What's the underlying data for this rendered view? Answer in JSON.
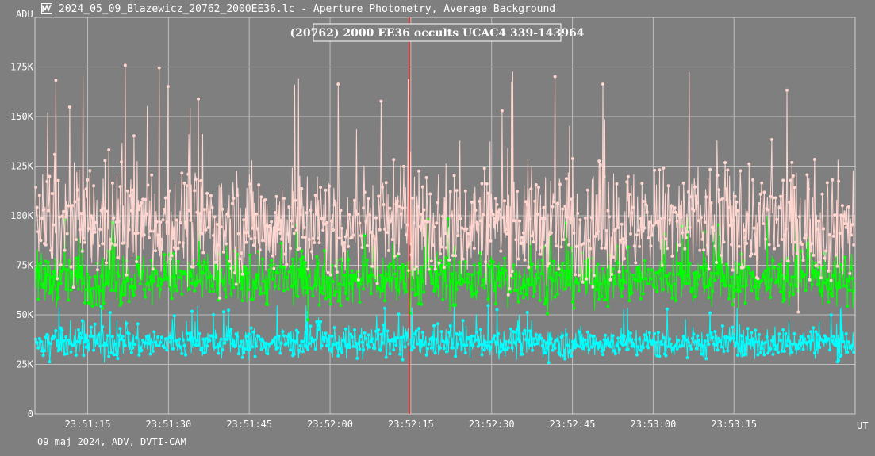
{
  "window": {
    "title": "2024_05_09_Blazewicz_20762_2000EE36.lc - Aperture Photometry, Average Background",
    "icon": "lightcurve-app-icon"
  },
  "footer": {
    "text": "09 maj 2024, ADV, DVTI-CAM"
  },
  "chart_data": {
    "type": "scatter",
    "title": "(20762) 2000 EE36 occults UCAC4 339-143964",
    "ylabel": "ADU",
    "xlabel": "UT",
    "ylim": [
      0,
      200000
    ],
    "xlim": [
      5465.2,
      5617.5
    ],
    "x_unit": "seconds since 22:20:00 UT",
    "yticks": [
      {
        "value": 0,
        "label": "0"
      },
      {
        "value": 25000,
        "label": "25K"
      },
      {
        "value": 50000,
        "label": "50K"
      },
      {
        "value": 75000,
        "label": "75K"
      },
      {
        "value": 100000,
        "label": "100K"
      },
      {
        "value": 125000,
        "label": "125K"
      },
      {
        "value": 150000,
        "label": "150K"
      },
      {
        "value": 175000,
        "label": "175K"
      }
    ],
    "xticks": [
      {
        "value": 5475,
        "label": "23:51:15"
      },
      {
        "value": 5490,
        "label": "23:51:30"
      },
      {
        "value": 5505,
        "label": "23:51:45"
      },
      {
        "value": 5520,
        "label": "23:52:00"
      },
      {
        "value": 5535,
        "label": "23:52:15"
      },
      {
        "value": 5550,
        "label": "23:52:30"
      },
      {
        "value": 5565,
        "label": "23:52:45"
      },
      {
        "value": 5580,
        "label": "23:53:00"
      },
      {
        "value": 5595,
        "label": "23:53:15"
      }
    ],
    "grid": true,
    "cursor_x": 5534.7,
    "series": [
      {
        "id": "target",
        "color": "#ffd6d0",
        "mean": 96000,
        "spread": 26000,
        "spike_max": 176000
      },
      {
        "id": "comparison",
        "color": "#00ff00",
        "mean": 68000,
        "spread": 12000,
        "spike_max": 100000
      },
      {
        "id": "background",
        "color": "#00ffff",
        "mean": 36000,
        "spread": 7000,
        "spike_max": 55000
      }
    ],
    "n_points": 1300
  }
}
